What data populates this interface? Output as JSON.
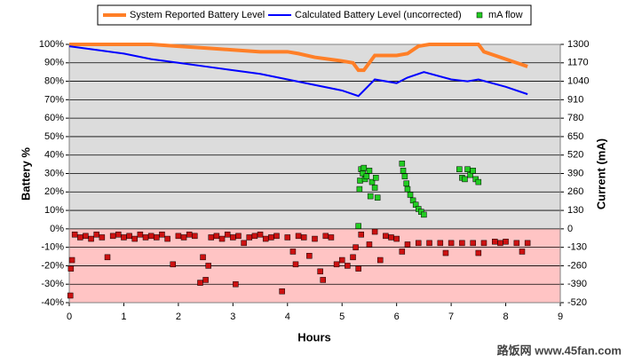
{
  "chart_data": {
    "type": "combo",
    "x_label": "Hours",
    "y_label": "Battery %",
    "y2_label": "Current (mA)",
    "watermark": "路饭网 www.45fan.com",
    "xlim": [
      0,
      9
    ],
    "xticks": [
      0,
      1,
      2,
      3,
      4,
      5,
      6,
      7,
      8,
      9
    ],
    "ylim": [
      -40,
      100
    ],
    "yticks": [
      {
        "value": -40,
        "label": "-40%"
      },
      {
        "value": -30,
        "label": "-30%"
      },
      {
        "value": -20,
        "label": "-20%"
      },
      {
        "value": -10,
        "label": "-10%"
      },
      {
        "value": 0,
        "label": "0%"
      },
      {
        "value": 10,
        "label": "10%"
      },
      {
        "value": 20,
        "label": "20%"
      },
      {
        "value": 30,
        "label": "30%"
      },
      {
        "value": 40,
        "label": "40%"
      },
      {
        "value": 50,
        "label": "50%"
      },
      {
        "value": 60,
        "label": "60%"
      },
      {
        "value": 70,
        "label": "70%"
      },
      {
        "value": 80,
        "label": "80%"
      },
      {
        "value": 90,
        "label": "90%"
      },
      {
        "value": 100,
        "label": "100%"
      }
    ],
    "y2lim": [
      -520,
      1300
    ],
    "y2ticks": [
      -520,
      -390,
      -260,
      -130,
      0,
      130,
      260,
      390,
      520,
      650,
      780,
      910,
      1040,
      1170,
      1300
    ],
    "grid": true,
    "background_color": "#dcdcdc",
    "negative_background_color": "#ffc4c4",
    "series": [
      {
        "name": "System Reported Battery Level",
        "type": "line",
        "color": "#ff7f27",
        "x": [
          0,
          1.5,
          2,
          2.5,
          3,
          3.5,
          4,
          4.2,
          4.5,
          5,
          5.2,
          5.3,
          5.4,
          5.6,
          6,
          6.2,
          6.4,
          6.6,
          7,
          7.5,
          7.6,
          8,
          8.3,
          8.4
        ],
        "values": [
          100,
          100,
          99,
          98,
          97,
          96,
          96,
          95,
          93,
          91,
          90,
          86,
          86,
          94,
          94,
          95,
          99,
          100,
          100,
          100,
          96,
          92,
          89,
          88
        ]
      },
      {
        "name": "Calculated Battery Level (uncorrected)",
        "type": "line",
        "color": "#0000ff",
        "x": [
          0,
          0.5,
          1,
          1.5,
          2,
          2.5,
          3,
          3.5,
          4,
          4.5,
          5,
          5.3,
          5.6,
          6,
          6.2,
          6.5,
          7,
          7.3,
          7.5,
          8,
          8.4
        ],
        "values": [
          99,
          97,
          95,
          92,
          90,
          88,
          86,
          84,
          81,
          78,
          75,
          72,
          81,
          79,
          82,
          85,
          81,
          80,
          81,
          77,
          73
        ]
      },
      {
        "name": "mA flow",
        "type": "scatter",
        "axis": "y2",
        "color": "#22cc22",
        "negative_color": "#cc1111",
        "x": [
          0.02,
          0.03,
          0.05,
          0.1,
          0.2,
          0.3,
          0.4,
          0.5,
          0.6,
          0.7,
          0.8,
          0.9,
          1.0,
          1.1,
          1.2,
          1.3,
          1.4,
          1.5,
          1.6,
          1.7,
          1.8,
          1.9,
          2.0,
          2.1,
          2.2,
          2.3,
          2.4,
          2.45,
          2.5,
          2.55,
          2.6,
          2.7,
          2.8,
          2.9,
          3.0,
          3.05,
          3.1,
          3.2,
          3.3,
          3.4,
          3.5,
          3.6,
          3.7,
          3.8,
          3.9,
          4.0,
          4.1,
          4.15,
          4.2,
          4.3,
          4.4,
          4.5,
          4.6,
          4.65,
          4.7,
          4.8,
          4.9,
          5.0,
          5.1,
          5.2,
          5.25,
          5.3,
          5.35,
          5.5,
          5.6,
          5.7,
          5.8,
          5.9,
          6.0,
          6.1,
          6.2,
          6.4,
          6.6,
          6.8,
          6.9,
          7.0,
          7.2,
          7.4,
          7.5,
          7.6,
          7.8,
          7.9,
          8.0,
          8.2,
          8.3,
          8.4,
          5.3,
          5.32,
          5.33,
          5.35,
          5.38,
          5.4,
          5.42,
          5.45,
          5.5,
          5.55,
          5.6,
          5.62,
          5.65,
          5.52,
          6.1,
          6.12,
          6.15,
          6.18,
          6.2,
          6.25,
          6.3,
          6.35,
          6.4,
          6.45,
          6.5,
          7.15,
          7.2,
          7.25,
          7.3,
          7.35,
          7.4,
          7.45,
          7.5
        ],
        "values": [
          -470,
          -280,
          -220,
          -40,
          -60,
          -50,
          -70,
          -40,
          -60,
          -200,
          -50,
          -40,
          -60,
          -50,
          -70,
          -40,
          -60,
          -50,
          -60,
          -40,
          -70,
          -250,
          -50,
          -60,
          -40,
          -50,
          -380,
          -200,
          -360,
          -260,
          -60,
          -50,
          -70,
          -40,
          -60,
          -390,
          -50,
          -100,
          -60,
          -50,
          -40,
          -70,
          -60,
          -50,
          -440,
          -60,
          -160,
          -250,
          -50,
          -60,
          -190,
          -70,
          -300,
          -360,
          -50,
          -60,
          -250,
          -220,
          -260,
          -200,
          -130,
          -280,
          -40,
          -110,
          -20,
          -220,
          -50,
          -60,
          -70,
          -160,
          -110,
          -100,
          -100,
          -100,
          -170,
          -100,
          -100,
          -100,
          -170,
          -100,
          -90,
          -100,
          -90,
          -100,
          -160,
          -100,
          20,
          280,
          340,
          420,
          390,
          430,
          350,
          370,
          410,
          330,
          290,
          360,
          220,
          230,
          460,
          410,
          370,
          320,
          280,
          240,
          200,
          170,
          140,
          120,
          100,
          420,
          360,
          350,
          420,
          380,
          410,
          350,
          330
        ]
      }
    ]
  }
}
